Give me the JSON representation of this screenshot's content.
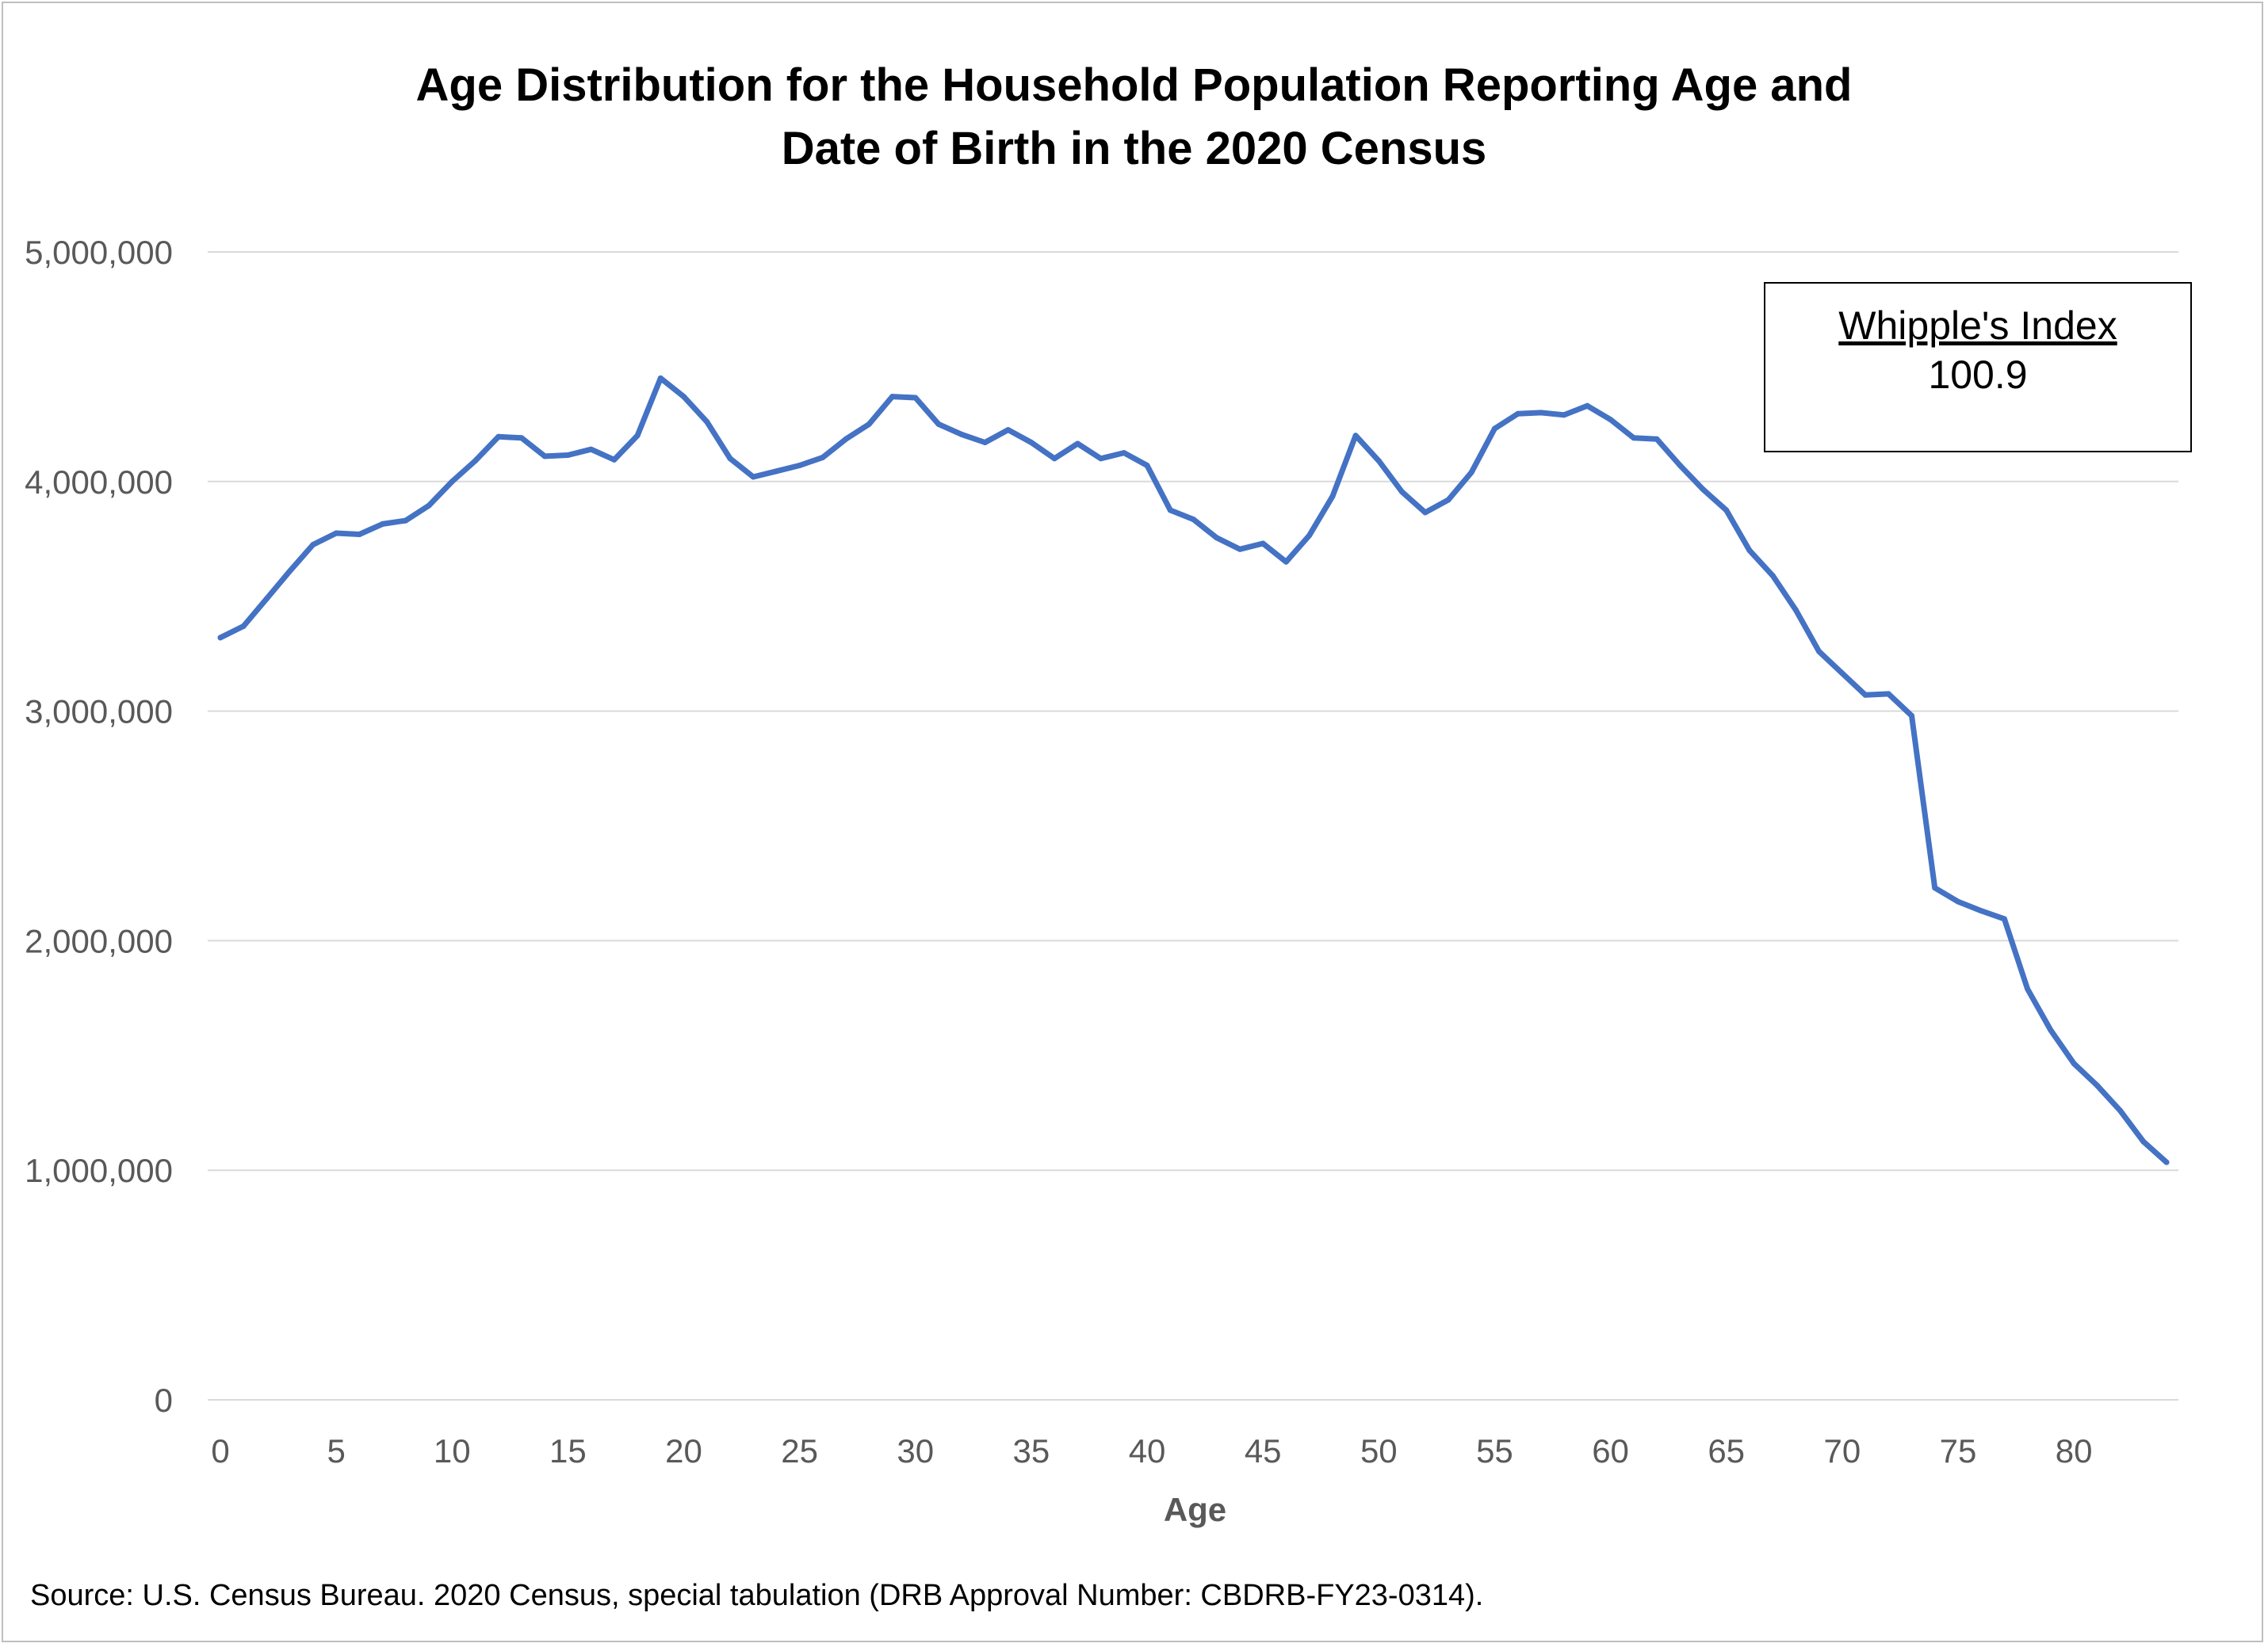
{
  "chart_data": {
    "type": "line",
    "title_lines": [
      "Age Distribution for the Household Population Reporting Age and",
      "Date of Birth in the 2020 Census"
    ],
    "xlabel": "Age",
    "ylabel": "",
    "xlim": [
      0,
      84
    ],
    "ylim": [
      0,
      5000000
    ],
    "x_ticks": [
      0,
      5,
      10,
      15,
      20,
      25,
      30,
      35,
      40,
      45,
      50,
      55,
      60,
      65,
      70,
      75,
      80
    ],
    "x_tick_labels": [
      "0",
      "5",
      "10",
      "15",
      "20",
      "25",
      "30",
      "35",
      "40",
      "45",
      "50",
      "55",
      "60",
      "65",
      "70",
      "75",
      "80"
    ],
    "y_ticks": [
      0,
      1000000,
      2000000,
      3000000,
      4000000,
      5000000
    ],
    "y_tick_labels": [
      "0",
      "1,000,000",
      "2,000,000",
      "3,000,000",
      "4,000,000",
      "5,000,000"
    ],
    "grid": "horizontal",
    "legend": "none",
    "line_color": "#4472c4",
    "x": [
      0,
      1,
      2,
      3,
      4,
      5,
      6,
      7,
      8,
      9,
      10,
      11,
      12,
      13,
      14,
      15,
      16,
      17,
      18,
      19,
      20,
      21,
      22,
      23,
      24,
      25,
      26,
      27,
      28,
      29,
      30,
      31,
      32,
      33,
      34,
      35,
      36,
      37,
      38,
      39,
      40,
      41,
      42,
      43,
      44,
      45,
      46,
      47,
      48,
      49,
      50,
      51,
      52,
      53,
      54,
      55,
      56,
      57,
      58,
      59,
      60,
      61,
      62,
      63,
      64,
      65,
      66,
      67,
      68,
      69,
      70,
      71,
      72,
      73,
      74,
      75,
      76,
      77,
      78,
      79,
      80,
      81,
      82,
      83,
      84
    ],
    "series": [
      {
        "values": [
          3320000,
          3370000,
          3490000,
          3610000,
          3725000,
          3775000,
          3770000,
          3815000,
          3830000,
          3895000,
          4000000,
          4090000,
          4195000,
          4190000,
          4110000,
          4115000,
          4140000,
          4095000,
          4200000,
          4450000,
          4370000,
          4260000,
          4100000,
          4020000,
          4045000,
          4070000,
          4105000,
          4185000,
          4250000,
          4370000,
          4365000,
          4250000,
          4205000,
          4170000,
          4225000,
          4170000,
          4100000,
          4165000,
          4100000,
          4125000,
          4070000,
          3875000,
          3835000,
          3755000,
          3705000,
          3730000,
          3650000,
          3765000,
          3935000,
          4200000,
          4090000,
          3955000,
          3865000,
          3920000,
          4040000,
          4230000,
          4295000,
          4300000,
          4290000,
          4330000,
          4270000,
          4190000,
          4185000,
          4070000,
          3965000,
          3875000,
          3700000,
          3590000,
          3440000,
          3260000,
          3165000,
          3070000,
          3075000,
          2980000,
          2230000,
          2170000,
          2130000,
          2095000,
          1790000,
          1610000,
          1465000,
          1370000,
          1260000,
          1125000,
          1035000
        ]
      }
    ]
  },
  "annotation": {
    "title": "Whipple's Index",
    "value": "100.9"
  },
  "source_note": "Source: U.S. Census Bureau. 2020 Census, special tabulation (DRB Approval Number: CBDRB-FY23-0314)."
}
